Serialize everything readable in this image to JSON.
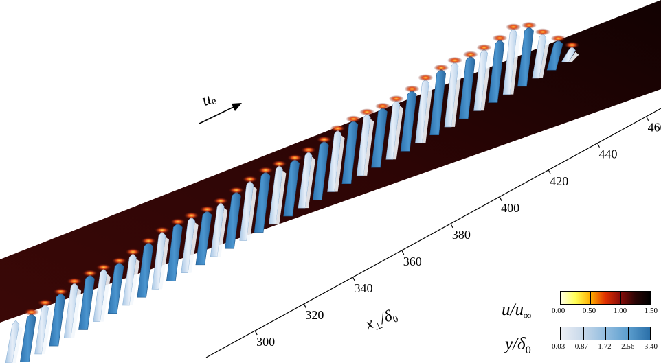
{
  "flow_direction_label": "u",
  "flow_direction_subscript": "e",
  "x_axis": {
    "label_main": "x",
    "label_sub": "⊥",
    "label_rest": "/δ",
    "label_rest_sub": "0",
    "ticks": [
      "300",
      "320",
      "340",
      "360",
      "380",
      "400",
      "420",
      "440",
      "460"
    ]
  },
  "colorbar_velocity": {
    "label_main": "u",
    "label_rest": "/u",
    "label_sub": "∞",
    "ticks": [
      "0.00",
      "0.50",
      "1.00",
      "1.50"
    ],
    "stops": [
      "#ffffe6",
      "#ffff55",
      "#ffb000",
      "#e03000",
      "#8a0d0a",
      "#2a0505",
      "#000000"
    ]
  },
  "colorbar_height": {
    "label_main": "y",
    "label_rest": "/δ",
    "label_sub": "0",
    "ticks": [
      "0.03",
      "0.87",
      "1.72",
      "2.56",
      "3.40"
    ],
    "stops": [
      "#eceff5",
      "#c7d8ea",
      "#93bddf",
      "#5d9fcf",
      "#2a6fa8"
    ]
  },
  "colors": {
    "free_stream": "#300605",
    "far_field_dark": "#1a0303",
    "vortex_light": "#d6e4f2",
    "vortex_dark": "#3f8ac5",
    "crest_glow": "#d53a10"
  }
}
